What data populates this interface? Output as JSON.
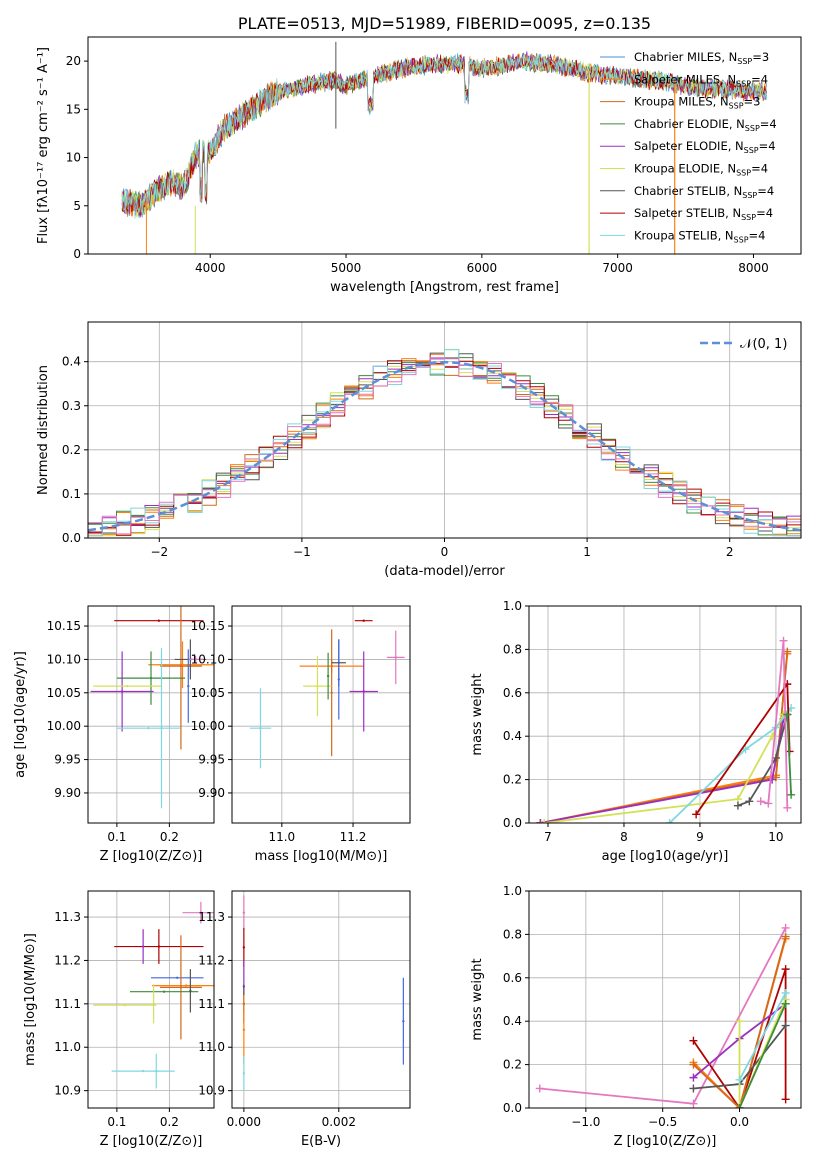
{
  "colors": {
    "chabrier_miles": "#4a90d9",
    "salpeter_miles": "#ff7f0e",
    "kroupa_miles": "#d2691e",
    "chabrier_elodie": "#3c8c3c",
    "salpeter_elodie": "#9b30c0",
    "kroupa_elodie": "#d4e157",
    "chabrier_stelib": "#555555",
    "salpeter_stelib": "#b00000",
    "kroupa_stelib": "#7fd8e0",
    "pink": "#e377c2",
    "blue": "#4169e1",
    "normal_curve": "#5b8fd6"
  },
  "chart_data": [
    {
      "id": "spectrum",
      "type": "line",
      "title": "PLATE=0513, MJD=51989, FIBERID=0095, z=0.135",
      "xlabel": "wavelength [Angstrom, rest frame]",
      "ylabel": "Flux [fλ10⁻¹⁷ erg cm⁻² s⁻¹ A⁻¹]",
      "xlim": [
        3100,
        8350
      ],
      "ylim": [
        0,
        22.5
      ],
      "xticks": [
        4000,
        5000,
        6000,
        7000,
        8000
      ],
      "yticks": [
        0,
        5,
        10,
        15,
        20
      ],
      "continuum": [
        [
          3350,
          5.5
        ],
        [
          3500,
          5.0
        ],
        [
          3600,
          6.5
        ],
        [
          3700,
          7.5
        ],
        [
          3800,
          6.8
        ],
        [
          3900,
          10.5
        ],
        [
          4000,
          10.5
        ],
        [
          4100,
          13.0
        ],
        [
          4200,
          14.0
        ],
        [
          4300,
          15.0
        ],
        [
          4400,
          16.0
        ],
        [
          4500,
          16.8
        ],
        [
          4700,
          17.5
        ],
        [
          4900,
          18.0
        ],
        [
          5000,
          17.5
        ],
        [
          5200,
          18.5
        ],
        [
          5500,
          19.5
        ],
        [
          5800,
          19.8
        ],
        [
          6000,
          19.2
        ],
        [
          6300,
          20.0
        ],
        [
          6500,
          19.7
        ],
        [
          6800,
          18.8
        ],
        [
          7000,
          18.4
        ],
        [
          7300,
          18.0
        ],
        [
          7600,
          17.2
        ],
        [
          7900,
          17.0
        ],
        [
          8100,
          16.8
        ]
      ],
      "legend": [
        {
          "label": "Chabrier MILES, N_SSP=3",
          "color": "chabrier_miles"
        },
        {
          "label": "Salpeter MILES, N_SSP=4",
          "color": "salpeter_miles"
        },
        {
          "label": "Kroupa MILES, N_SSP=3",
          "color": "kroupa_miles"
        },
        {
          "label": "Chabrier ELODIE, N_SSP=4",
          "color": "chabrier_elodie"
        },
        {
          "label": "Salpeter ELODIE, N_SSP=4",
          "color": "salpeter_elodie"
        },
        {
          "label": "Kroupa ELODIE, N_SSP=4",
          "color": "kroupa_elodie"
        },
        {
          "label": "Chabrier STELIB, N_SSP=4",
          "color": "chabrier_stelib"
        },
        {
          "label": "Salpeter STELIB, N_SSP=4",
          "color": "salpeter_stelib"
        },
        {
          "label": "Kroupa STELIB, N_SSP=4",
          "color": "kroupa_stelib"
        }
      ]
    },
    {
      "id": "residuals",
      "type": "histogram",
      "xlabel": "(data-model)/error",
      "ylabel": "Normed distribution",
      "xlim": [
        -2.5,
        2.5
      ],
      "ylim": [
        0,
        0.49
      ],
      "xticks": [
        -2,
        -1,
        0,
        1,
        2
      ],
      "yticks": [
        0.0,
        0.1,
        0.2,
        0.3,
        0.4
      ],
      "grid": true,
      "bin_width": 0.1,
      "legend": "$\\mathcal{N}(0,1)$",
      "legend_placement": "top-right"
    },
    {
      "id": "age_vs_Z",
      "type": "errorbar",
      "xlabel": "Z [log10(Z/Z⊙)]",
      "ylabel": "age  [log10(age/yr)]",
      "xlim": [
        0.045,
        0.285
      ],
      "ylim": [
        9.855,
        10.18
      ],
      "xticks": [
        0.1,
        0.2
      ],
      "yticks": [
        9.9,
        9.95,
        10.0,
        10.05,
        10.1,
        10.15
      ],
      "grid": true,
      "points": [
        {
          "x": 0.18,
          "y": 10.158,
          "xerr": 0.085,
          "yerr": 0.0,
          "c": "salpeter_stelib"
        },
        {
          "x": 0.225,
          "y": 10.092,
          "xerr": 0.065,
          "yerr": 0.035,
          "c": "salpeter_miles"
        },
        {
          "x": 0.222,
          "y": 10.09,
          "xerr": 0.04,
          "yerr": 0.125,
          "c": "kroupa_miles"
        },
        {
          "x": 0.24,
          "y": 10.1,
          "xerr": 0.03,
          "yerr": 0.03,
          "c": "chabrier_stelib"
        },
        {
          "x": 0.25,
          "y": 10.1,
          "xerr": 0.015,
          "yerr": 0.005,
          "c": "pink"
        },
        {
          "x": 0.165,
          "y": 10.072,
          "xerr": 0.065,
          "yerr": 0.04,
          "c": "chabrier_elodie"
        },
        {
          "x": 0.11,
          "y": 10.052,
          "xerr": 0.06,
          "yerr": 0.06,
          "c": "salpeter_elodie"
        },
        {
          "x": 0.12,
          "y": 10.06,
          "xerr": 0.065,
          "yerr": 0.0,
          "c": "kroupa_elodie"
        },
        {
          "x": 0.16,
          "y": 9.997,
          "xerr": 0.06,
          "yerr": 0.0,
          "c": "kroupa_stelib"
        },
        {
          "x": 0.185,
          "y": 9.997,
          "xerr": 0.0,
          "yerr": 0.12,
          "c": "kroupa_stelib"
        },
        {
          "x": 0.236,
          "y": 10.06,
          "xerr": 0.0,
          "yerr": 0.055,
          "c": "blue"
        }
      ]
    },
    {
      "id": "age_vs_mass",
      "type": "errorbar",
      "xlabel": "mass [log10(M/M⊙)]",
      "ylabel": "",
      "xlim": [
        10.86,
        11.36
      ],
      "ylim": [
        9.855,
        10.18
      ],
      "xticks": [
        11.0,
        11.2
      ],
      "yticks": [
        9.9,
        9.95,
        10.0,
        10.05,
        10.1,
        10.15
      ],
      "grid": true,
      "points": [
        {
          "x": 11.23,
          "y": 10.158,
          "xerr": 0.025,
          "yerr": 0.0,
          "c": "salpeter_stelib"
        },
        {
          "x": 11.32,
          "y": 10.103,
          "xerr": 0.025,
          "yerr": 0.04,
          "c": "pink"
        },
        {
          "x": 11.14,
          "y": 10.09,
          "xerr": 0.09,
          "yerr": 0.01,
          "c": "salpeter_miles"
        },
        {
          "x": 11.14,
          "y": 10.05,
          "xerr": 0.0,
          "yerr": 0.095,
          "c": "kroupa_miles"
        },
        {
          "x": 11.16,
          "y": 10.095,
          "xerr": 0.02,
          "yerr": 0.035,
          "c": "chabrier_stelib"
        },
        {
          "x": 11.1,
          "y": 10.06,
          "xerr": 0.04,
          "yerr": 0.045,
          "c": "kroupa_elodie"
        },
        {
          "x": 11.23,
          "y": 10.052,
          "xerr": 0.04,
          "yerr": 0.06,
          "c": "salpeter_elodie"
        },
        {
          "x": 10.94,
          "y": 9.997,
          "xerr": 0.03,
          "yerr": 0.06,
          "c": "kroupa_stelib"
        },
        {
          "x": 11.16,
          "y": 10.07,
          "xerr": 0.0,
          "yerr": 0.06,
          "c": "blue"
        },
        {
          "x": 11.13,
          "y": 10.075,
          "xerr": 0.0,
          "yerr": 0.035,
          "c": "chabrier_elodie"
        }
      ]
    },
    {
      "id": "weight_vs_age",
      "type": "line",
      "xlabel": "age  [log10(age/yr)]",
      "ylabel": "mass weight",
      "xlim": [
        6.75,
        10.33
      ],
      "ylim": [
        0,
        1.0
      ],
      "xticks": [
        7,
        8,
        9,
        10
      ],
      "yticks": [
        0.0,
        0.2,
        0.4,
        0.6,
        0.8,
        1.0
      ],
      "grid": true,
      "series": [
        {
          "c": "salpeter_miles",
          "x": [
            6.9,
            10.0,
            10.15
          ],
          "y": [
            0.0,
            0.22,
            0.78
          ]
        },
        {
          "c": "kroupa_miles",
          "x": [
            6.9,
            10.0,
            10.15
          ],
          "y": [
            0.0,
            0.21,
            0.79
          ]
        },
        {
          "c": "salpeter_elodie",
          "x": [
            6.9,
            9.95,
            10.1
          ],
          "y": [
            0.0,
            0.2,
            0.48
          ]
        },
        {
          "c": "kroupa_elodie",
          "x": [
            6.95,
            9.5,
            9.95,
            10.1
          ],
          "y": [
            0.0,
            0.11,
            0.4,
            0.5
          ]
        },
        {
          "c": "kroupa_stelib",
          "x": [
            8.6,
            9.6,
            10.0,
            10.2
          ],
          "y": [
            0.0,
            0.34,
            0.44,
            0.53
          ]
        },
        {
          "c": "salpeter_stelib",
          "x": [
            8.95,
            10.15,
            10.18
          ],
          "y": [
            0.04,
            0.64,
            0.33
          ]
        },
        {
          "c": "chabrier_stelib",
          "x": [
            9.5,
            9.65,
            10.0,
            10.15
          ],
          "y": [
            0.08,
            0.1,
            0.3,
            0.5
          ]
        },
        {
          "c": "pink",
          "x": [
            9.8,
            9.9,
            10.1,
            10.15
          ],
          "y": [
            0.1,
            0.09,
            0.84,
            0.07
          ]
        },
        {
          "c": "chabrier_elodie",
          "x": [
            10.15,
            10.2
          ],
          "y": [
            0.5,
            0.13
          ]
        }
      ]
    },
    {
      "id": "mass_vs_Z",
      "type": "errorbar",
      "xlabel": "Z [log10(Z/Z⊙)]",
      "ylabel": "mass [log10(M/M⊙)]",
      "xlim": [
        0.045,
        0.285
      ],
      "ylim": [
        10.86,
        11.36
      ],
      "xticks": [
        0.1,
        0.2
      ],
      "yticks": [
        10.9,
        11.0,
        11.1,
        11.2,
        11.3
      ],
      "grid": true,
      "points": [
        {
          "x": 0.26,
          "y": 11.31,
          "xerr": 0.035,
          "yerr": 0.025,
          "c": "pink"
        },
        {
          "x": 0.18,
          "y": 11.232,
          "xerr": 0.085,
          "yerr": 0.04,
          "c": "salpeter_stelib"
        },
        {
          "x": 0.15,
          "y": 11.232,
          "xerr": 0.0,
          "yerr": 0.04,
          "c": "salpeter_elodie"
        },
        {
          "x": 0.215,
          "y": 11.16,
          "xerr": 0.05,
          "yerr": 0.0,
          "c": "blue"
        },
        {
          "x": 0.232,
          "y": 11.142,
          "xerr": 0.065,
          "yerr": 0.0,
          "c": "salpeter_miles"
        },
        {
          "x": 0.222,
          "y": 11.138,
          "xerr": 0.04,
          "yerr": 0.12,
          "c": "kroupa_miles"
        },
        {
          "x": 0.19,
          "y": 11.128,
          "xerr": 0.065,
          "yerr": 0.0,
          "c": "chabrier_elodie"
        },
        {
          "x": 0.24,
          "y": 11.13,
          "xerr": 0.0,
          "yerr": 0.05,
          "c": "chabrier_stelib"
        },
        {
          "x": 0.115,
          "y": 11.097,
          "xerr": 0.06,
          "yerr": 0.0,
          "c": "kroupa_elodie"
        },
        {
          "x": 0.17,
          "y": 11.1,
          "xerr": 0.0,
          "yerr": 0.045,
          "c": "kroupa_elodie"
        },
        {
          "x": 0.15,
          "y": 10.945,
          "xerr": 0.06,
          "yerr": 0.0,
          "c": "kroupa_stelib"
        },
        {
          "x": 0.175,
          "y": 10.945,
          "xerr": 0.0,
          "yerr": 0.04,
          "c": "kroupa_stelib"
        }
      ]
    },
    {
      "id": "mass_vs_EBV",
      "type": "errorbar",
      "xlabel": "E(B-V)",
      "ylabel": "",
      "xlim": [
        -0.00025,
        0.0035
      ],
      "ylim": [
        10.86,
        11.36
      ],
      "xticks": [
        0.0,
        0.002
      ],
      "yticks": [
        10.9,
        11.0,
        11.1,
        11.2,
        11.3
      ],
      "grid": true,
      "points": [
        {
          "x": 0.0,
          "y": 11.31,
          "xerr": 0.0,
          "yerr": 0.04,
          "c": "pink"
        },
        {
          "x": 0.0,
          "y": 11.23,
          "xerr": 0.0,
          "yerr": 0.045,
          "c": "salpeter_stelib"
        },
        {
          "x": 0.0,
          "y": 11.14,
          "xerr": 0.0,
          "yerr": 0.06,
          "c": "salpeter_elodie"
        },
        {
          "x": 0.0,
          "y": 11.1,
          "xerr": 0.0,
          "yerr": 0.045,
          "c": "chabrier_stelib"
        },
        {
          "x": 0.0,
          "y": 11.04,
          "xerr": 0.0,
          "yerr": 0.08,
          "c": "salpeter_miles"
        },
        {
          "x": 0.0,
          "y": 10.94,
          "xerr": 0.0,
          "yerr": 0.04,
          "c": "kroupa_stelib"
        },
        {
          "x": 0.00336,
          "y": 11.06,
          "xerr": 0.0,
          "yerr": 0.1,
          "c": "blue"
        }
      ]
    },
    {
      "id": "weight_vs_Z",
      "type": "line",
      "xlabel": "Z [log10(Z/Z⊙)]",
      "ylabel": "mass weight",
      "xlim": [
        -1.37,
        0.4
      ],
      "ylim": [
        0,
        1.0
      ],
      "xticks": [
        -1.0,
        -0.5,
        0.0
      ],
      "yticks": [
        0.0,
        0.2,
        0.4,
        0.6,
        0.8,
        1.0
      ],
      "grid": true,
      "series": [
        {
          "c": "pink",
          "x": [
            -1.3,
            -0.3,
            0.3
          ],
          "y": [
            0.09,
            0.02,
            0.83
          ]
        },
        {
          "c": "salpeter_stelib",
          "x": [
            -0.3,
            0.0,
            0.3,
            0.3
          ],
          "y": [
            0.31,
            0.0,
            0.64,
            0.04
          ]
        },
        {
          "c": "salpeter_miles",
          "x": [
            -0.3,
            0.0,
            0.3
          ],
          "y": [
            0.21,
            0.0,
            0.78
          ]
        },
        {
          "c": "kroupa_miles",
          "x": [
            -0.3,
            0.0,
            0.3
          ],
          "y": [
            0.2,
            0.0,
            0.79
          ]
        },
        {
          "c": "salpeter_elodie",
          "x": [
            -0.3,
            0.0,
            0.3
          ],
          "y": [
            0.14,
            0.32,
            0.48
          ]
        },
        {
          "c": "chabrier_stelib",
          "x": [
            -0.3,
            0.0,
            0.3
          ],
          "y": [
            0.09,
            0.11,
            0.38
          ]
        },
        {
          "c": "kroupa_elodie",
          "x": [
            0.0,
            0.0,
            0.3
          ],
          "y": [
            0.4,
            0.0,
            0.5
          ]
        },
        {
          "c": "kroupa_stelib",
          "x": [
            0.0,
            0.3
          ],
          "y": [
            0.13,
            0.53
          ]
        },
        {
          "c": "chabrier_elodie",
          "x": [
            0.0,
            0.3
          ],
          "y": [
            0.0,
            0.48
          ]
        }
      ]
    }
  ]
}
